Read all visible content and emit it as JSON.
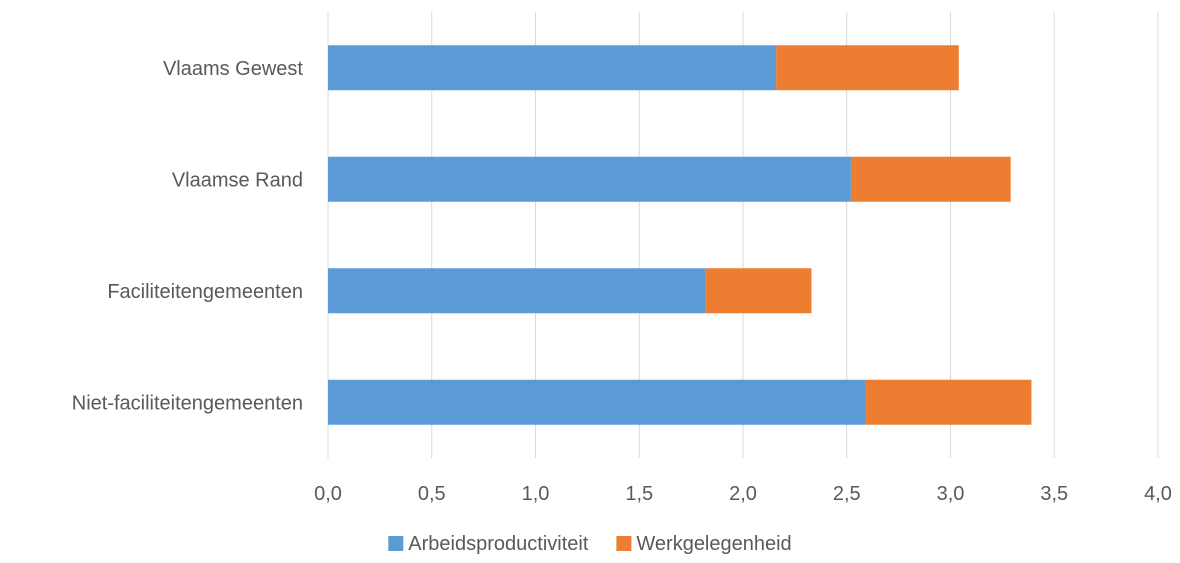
{
  "chart_data": {
    "type": "bar",
    "orientation": "horizontal",
    "stacked": true,
    "categories": [
      "Vlaams Gewest",
      "Vlaamse Rand",
      "Faciliteitengemeenten",
      "Niet-faciliteitengemeenten"
    ],
    "series": [
      {
        "name": "Arbeidsproductiviteit",
        "color": "#5b9bd5",
        "values": [
          2.16,
          2.52,
          1.82,
          2.59
        ]
      },
      {
        "name": "Werkgelegenheid",
        "color": "#ed7d31",
        "values": [
          0.88,
          0.77,
          0.51,
          0.8
        ]
      }
    ],
    "xlim": [
      0,
      4
    ],
    "xticks": [
      "0,0",
      "0,5",
      "1,0",
      "1,5",
      "2,0",
      "2,5",
      "3,0",
      "3,5",
      "4,0"
    ],
    "grid": true,
    "legend_position": "bottom"
  }
}
